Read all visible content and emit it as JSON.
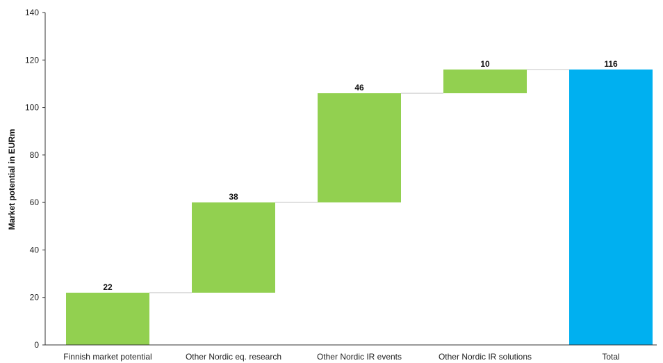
{
  "chart_data": {
    "type": "bar",
    "subtype": "waterfall",
    "title": "",
    "xlabel": "",
    "ylabel": "Market potential in EURm",
    "ylim": [
      0,
      140
    ],
    "yticks": [
      0,
      20,
      40,
      60,
      80,
      100,
      120,
      140
    ],
    "grid": false,
    "legend": "none",
    "categories": [
      "Finnish market potential",
      "Other Nordic eq. research",
      "Other Nordic IR events",
      "Other Nordic IR solutions",
      "Total"
    ],
    "values": [
      22,
      38,
      46,
      10,
      116
    ],
    "bar_kinds": [
      "increment",
      "increment",
      "increment",
      "increment",
      "total"
    ],
    "labels": [
      "22",
      "38",
      "46",
      "10",
      "116"
    ],
    "colors": {
      "increment": "#92d050",
      "total": "#00b0f0",
      "connector": "#d9d9d9",
      "axis": "#333333"
    }
  }
}
